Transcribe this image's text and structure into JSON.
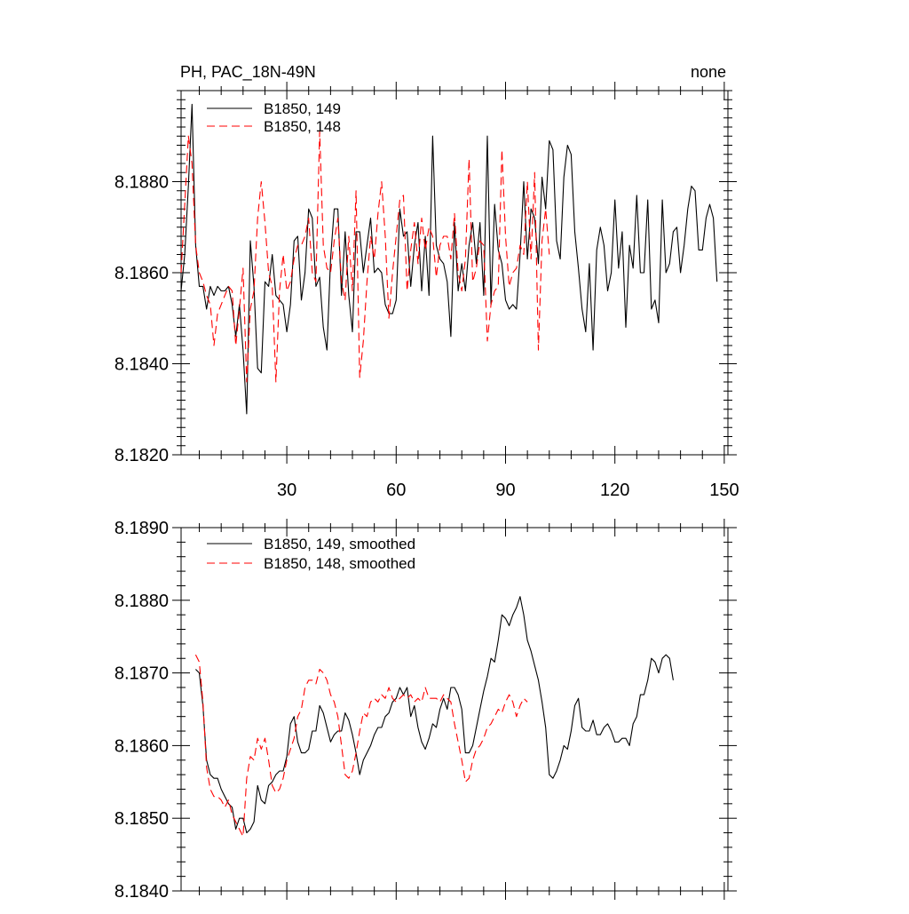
{
  "chart_data": [
    {
      "type": "line",
      "title": "PH, PAC_18N-49N",
      "title_right": "none",
      "xlabel": "",
      "ylabel": "",
      "xlim": [
        1,
        151
      ],
      "ylim": [
        8.182,
        8.19
      ],
      "x_ticks": [
        30,
        60,
        90,
        120,
        150
      ],
      "y_ticks": [
        8.182,
        8.184,
        8.186,
        8.188
      ],
      "y_tick_labels": [
        "8.1820",
        "8.1840",
        "8.1860",
        "8.1880"
      ],
      "grid": false,
      "legend_position": "top-left",
      "series": [
        {
          "name": "B1850, 149",
          "color": "#000000",
          "dash": "solid",
          "x_start": 1,
          "values": [
            8.1856,
            8.1864,
            8.1879,
            8.1897,
            8.1866,
            8.1857,
            8.1857,
            8.1852,
            8.1857,
            8.1855,
            8.1857,
            8.1856,
            8.1856,
            8.1857,
            8.1853,
            8.1846,
            8.1853,
            8.1843,
            8.1829,
            8.1867,
            8.1857,
            8.1839,
            8.1838,
            8.1858,
            8.1857,
            8.1864,
            8.1855,
            8.1854,
            8.1853,
            8.1847,
            8.1853,
            8.1867,
            8.1868,
            8.1854,
            8.186,
            8.1874,
            8.1872,
            8.1857,
            8.1859,
            8.1848,
            8.1843,
            8.1863,
            8.1874,
            8.1874,
            8.1855,
            8.1869,
            8.1855,
            8.1847,
            8.1869,
            8.1869,
            8.186,
            8.1866,
            8.1872,
            8.186,
            8.1861,
            8.186,
            8.1853,
            8.1851,
            8.1851,
            8.1854,
            8.1874,
            8.1868,
            8.1869,
            8.1857,
            8.1866,
            8.1871,
            8.1856,
            8.1868,
            8.1855,
            8.189,
            8.1866,
            8.1863,
            8.1862,
            8.1858,
            8.1846,
            8.1871,
            8.1856,
            8.1862,
            8.1856,
            8.1866,
            8.1871,
            8.1862,
            8.1871,
            8.1855,
            8.189,
            8.1853,
            8.1875,
            8.1865,
            8.1862,
            8.1854,
            8.1852,
            8.1853,
            8.1852,
            8.1864,
            8.188,
            8.1863,
            8.1874,
            8.1872,
            8.1862,
            8.1881,
            8.1874,
            8.1889,
            8.1887,
            8.1867,
            8.1863,
            8.1881,
            8.1888,
            8.1886,
            8.1869,
            8.1861,
            8.1852,
            8.1847,
            8.1862,
            8.1843,
            8.1865,
            8.187,
            8.1866,
            8.1856,
            8.186,
            8.1876,
            8.1861,
            8.1869,
            8.1848,
            8.1866,
            8.1861,
            8.1877,
            8.186,
            8.186,
            8.1876,
            8.1852,
            8.1854,
            8.1849,
            8.1876,
            8.186,
            8.1862,
            8.1869,
            8.187,
            8.186,
            8.1866,
            8.1874,
            8.1879,
            8.1878,
            8.1865,
            8.1865,
            8.1872,
            8.1875,
            8.1872,
            8.1858
          ]
        },
        {
          "name": "B1850, 148",
          "color": "#ff0000",
          "dash": "dashed",
          "x_start": 1,
          "values": [
            8.186,
            8.1875,
            8.189,
            8.1884,
            8.1866,
            8.186,
            8.1858,
            8.1855,
            8.1853,
            8.1844,
            8.1851,
            8.1853,
            8.1855,
            8.1857,
            8.1856,
            8.1844,
            8.1852,
            8.1861,
            8.1836,
            8.1852,
            8.1856,
            8.1872,
            8.188,
            8.1871,
            8.186,
            8.1857,
            8.1836,
            8.1856,
            8.1864,
            8.1856,
            8.1858,
            8.1863,
            8.1866,
            8.1866,
            8.1868,
            8.1872,
            8.186,
            8.1858,
            8.1891,
            8.1866,
            8.1861,
            8.186,
            8.1867,
            8.1872,
            8.1858,
            8.1854,
            8.1868,
            8.1856,
            8.1878,
            8.1837,
            8.1845,
            8.1858,
            8.1868,
            8.1863,
            8.1873,
            8.188,
            8.1868,
            8.185,
            8.186,
            8.1868,
            8.1876,
            8.1877,
            8.1856,
            8.1865,
            8.1871,
            8.1862,
            8.1872,
            8.1865,
            8.187,
            8.1868,
            8.1859,
            8.1866,
            8.1868,
            8.1868,
            8.1863,
            8.1873,
            8.186,
            8.1856,
            8.1863,
            8.1885,
            8.1858,
            8.1861,
            8.1867,
            8.1866,
            8.1845,
            8.1853,
            8.1856,
            8.1857,
            8.1887,
            8.1868,
            8.1857,
            8.186,
            8.1861,
            8.1866,
            8.1864,
            8.188,
            8.1863,
            8.1882,
            8.1843,
            8.1867,
            8.1874,
            8.1864
          ]
        }
      ]
    },
    {
      "type": "line",
      "title": "",
      "xlabel": "",
      "ylabel": "",
      "xlim": [
        1,
        151
      ],
      "ylim": [
        8.184,
        8.189
      ],
      "x_ticks": [
        30,
        60,
        90,
        120,
        150
      ],
      "y_ticks": [
        8.184,
        8.185,
        8.186,
        8.187,
        8.188,
        8.189
      ],
      "y_tick_labels": [
        "8.1840",
        "8.1850",
        "8.1860",
        "8.1870",
        "8.1880",
        "8.1890"
      ],
      "grid": false,
      "legend_position": "top-left",
      "series": [
        {
          "name": "B1850, 149, smoothed",
          "color": "#000000",
          "dash": "solid",
          "x_start": 5,
          "values": [
            8.18705,
            8.187,
            8.18655,
            8.1858,
            8.1856,
            8.18555,
            8.18555,
            8.1854,
            8.1853,
            8.1852,
            8.18515,
            8.18485,
            8.185,
            8.185,
            8.1848,
            8.18485,
            8.18495,
            8.18545,
            8.18525,
            8.1852,
            8.18545,
            8.1855,
            8.1856,
            8.18565,
            8.18565,
            8.18585,
            8.1863,
            8.1864,
            8.18605,
            8.1859,
            8.1859,
            8.18595,
            8.1862,
            8.1862,
            8.18655,
            8.18645,
            8.18625,
            8.18605,
            8.18615,
            8.1862,
            8.1862,
            8.18645,
            8.18635,
            8.18615,
            8.1859,
            8.1856,
            8.1858,
            8.1859,
            8.186,
            8.18615,
            8.18625,
            8.18625,
            8.1864,
            8.18645,
            8.1866,
            8.18665,
            8.1868,
            8.1867,
            8.1868,
            8.1864,
            8.18655,
            8.18625,
            8.18605,
            8.18595,
            8.1861,
            8.1863,
            8.18625,
            8.1865,
            8.18665,
            8.1865,
            8.1868,
            8.1868,
            8.1867,
            8.1865,
            8.1859,
            8.1859,
            8.186,
            8.18625,
            8.1865,
            8.18675,
            8.18695,
            8.1872,
            8.18715,
            8.18745,
            8.1878,
            8.18775,
            8.18765,
            8.1878,
            8.1879,
            8.18805,
            8.1878,
            8.18745,
            8.1873,
            8.1871,
            8.1869,
            8.1866,
            8.18625,
            8.1856,
            8.18555,
            8.18565,
            8.1858,
            8.186,
            8.18595,
            8.1862,
            8.18655,
            8.18665,
            8.18625,
            8.1862,
            8.1862,
            8.18635,
            8.18615,
            8.18615,
            8.18625,
            8.1863,
            8.1862,
            8.18605,
            8.18605,
            8.1861,
            8.1861,
            8.186,
            8.1863,
            8.1864,
            8.1867,
            8.1867,
            8.1869,
            8.1872,
            8.18715,
            8.187,
            8.1872,
            8.18725,
            8.1872,
            8.1869
          ]
        },
        {
          "name": "B1850, 148, smoothed",
          "color": "#ff0000",
          "dash": "dashed",
          "x_start": 5,
          "values": [
            8.18725,
            8.18715,
            8.1866,
            8.1857,
            8.1854,
            8.1853,
            8.1853,
            8.18525,
            8.18515,
            8.18525,
            8.18505,
            8.18495,
            8.18485,
            8.18475,
            8.18555,
            8.18585,
            8.1858,
            8.1861,
            8.18595,
            8.1861,
            8.1858,
            8.18545,
            8.18535,
            8.1854,
            8.18555,
            8.1858,
            8.18595,
            8.1861,
            8.1864,
            8.1865,
            8.1868,
            8.1869,
            8.1869,
            8.18685,
            8.18705,
            8.187,
            8.1869,
            8.1867,
            8.1866,
            8.1864,
            8.186,
            8.1856,
            8.18555,
            8.18565,
            8.1859,
            8.1862,
            8.18645,
            8.1864,
            8.1866,
            8.18665,
            8.1866,
            8.1867,
            8.18665,
            8.1868,
            8.18665,
            8.1866,
            8.18665,
            8.1867,
            8.18665,
            8.1867,
            8.1866,
            8.18665,
            8.1866,
            8.1868,
            8.18665,
            8.18665,
            8.18665,
            8.1866,
            8.1867,
            8.18665,
            8.1866,
            8.1863,
            8.18605,
            8.1858,
            8.1855,
            8.18555,
            8.1858,
            8.18595,
            8.186,
            8.1861,
            8.18625,
            8.1863,
            8.1864,
            8.1865,
            8.18645,
            8.1866,
            8.1867,
            8.1866,
            8.1864,
            8.18655,
            8.18665,
            8.1866
          ]
        }
      ]
    }
  ]
}
